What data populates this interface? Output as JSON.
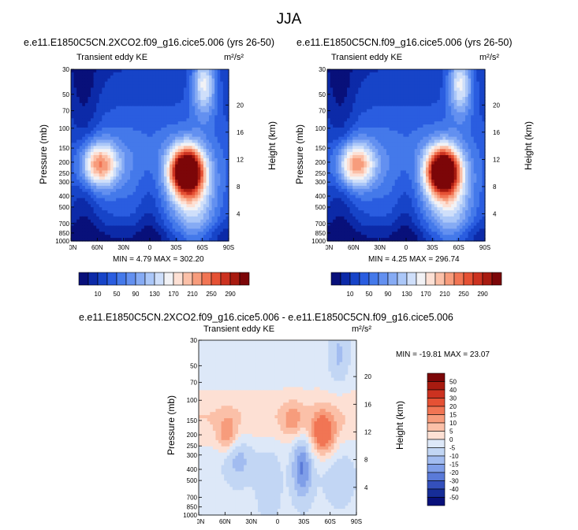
{
  "figure": {
    "title": "JJA"
  },
  "panels": [
    {
      "id": "p1",
      "title": "e.e11.E1850C5CN.2XCO2.f09_g16.cice5.006 (yrs 26-50)",
      "subtitle": "Transient eddy KE",
      "unit": "m²/s²",
      "minmax": "MIN =   4.79  MAX = 302.20"
    },
    {
      "id": "p2",
      "title": "e.e11.E1850C5CN.f09_g16.cice5.006 (yrs 26-50)",
      "subtitle": "Transient eddy KE",
      "unit": "m²/s²",
      "minmax": "MIN =   4.25  MAX = 296.74"
    },
    {
      "id": "p3",
      "title": "e.e11.E1850C5CN.2XCO2.f09_g16.cice5.006 - e.e11.E1850C5CN.f09_g16.cice5.006",
      "subtitle": "Transient eddy KE",
      "unit": "m²/s²",
      "minmax": "MIN = -19.81  MAX =  23.07"
    }
  ],
  "chart_data": [
    {
      "type": "heatmap",
      "title": "e.e11.E1850C5CN.2XCO2.f09_g16.cice5.006 (yrs 26-50)",
      "subtitle": "Transient eddy KE",
      "xlabel": "",
      "ylabel": "Pressure (mb)",
      "ylabel_right": "Height (km)",
      "x_ticks": [
        "90N",
        "60N",
        "30N",
        "0",
        "30S",
        "60S",
        "90S"
      ],
      "y_ticks": [
        30,
        50,
        70,
        100,
        150,
        200,
        250,
        300,
        400,
        500,
        700,
        850,
        1000
      ],
      "y_right_ticks": [
        4,
        8,
        12,
        16,
        20
      ],
      "y_scale": "log",
      "colorbar_levels": [
        10,
        50,
        90,
        130,
        170,
        210,
        250,
        290
      ],
      "features": [
        {
          "type": "max",
          "lat": 60,
          "p": 215,
          "value": 150
        },
        {
          "type": "max",
          "lat": -45,
          "p": 250,
          "value": 302.2
        },
        {
          "type": "max",
          "lat": -60,
          "p": 40,
          "value": 140
        }
      ],
      "min": 4.79,
      "max": 302.2
    },
    {
      "type": "heatmap",
      "title": "e.e11.E1850C5CN.f09_g16.cice5.006 (yrs 26-50)",
      "subtitle": "Transient eddy KE",
      "xlabel": "",
      "ylabel": "Pressure (mb)",
      "ylabel_right": "Height (km)",
      "x_ticks": [
        "90N",
        "60N",
        "30N",
        "0",
        "30S",
        "60S",
        "90S"
      ],
      "y_ticks": [
        30,
        50,
        70,
        100,
        150,
        200,
        250,
        300,
        400,
        500,
        700,
        850,
        1000
      ],
      "y_right_ticks": [
        4,
        8,
        12,
        16,
        20
      ],
      "y_scale": "log",
      "colorbar_levels": [
        10,
        50,
        90,
        130,
        170,
        210,
        250,
        290
      ],
      "features": [
        {
          "type": "max",
          "lat": 60,
          "p": 215,
          "value": 145
        },
        {
          "type": "max",
          "lat": -45,
          "p": 250,
          "value": 296.74
        },
        {
          "type": "max",
          "lat": -60,
          "p": 40,
          "value": 120
        }
      ],
      "min": 4.25,
      "max": 296.74
    },
    {
      "type": "heatmap",
      "title": "e.e11.E1850C5CN.2XCO2.f09_g16.cice5.006 - e.e11.E1850C5CN.f09_g16.cice5.006",
      "subtitle": "Transient eddy KE",
      "xlabel": "",
      "ylabel": "Pressure (mb)",
      "ylabel_right": "Height (km)",
      "x_ticks": [
        "90N",
        "60N",
        "30N",
        "0",
        "30S",
        "60S",
        "90S"
      ],
      "y_ticks": [
        30,
        50,
        70,
        100,
        150,
        200,
        250,
        300,
        400,
        500,
        700,
        850,
        1000
      ],
      "y_right_ticks": [
        4,
        8,
        12,
        16,
        20
      ],
      "y_scale": "log",
      "colorbar_levels": [
        50,
        40,
        30,
        20,
        15,
        10,
        5,
        0,
        -5,
        -10,
        -15,
        -20,
        -30,
        -40,
        -50
      ],
      "features": [
        {
          "type": "max",
          "lat": -52,
          "p": 200,
          "value": 23.07
        },
        {
          "type": "max",
          "lat": 58,
          "p": 200,
          "value": 15
        },
        {
          "type": "min",
          "lat": -30,
          "p": 400,
          "value": -19.81
        },
        {
          "type": "min",
          "lat": 45,
          "p": 320,
          "value": -10
        },
        {
          "type": "min",
          "lat": -70,
          "p": 40,
          "value": -8
        }
      ],
      "min": -19.81,
      "max": 23.07
    }
  ],
  "colors": {
    "kinetic": [
      "#08107a",
      "#0c2aa8",
      "#1744c8",
      "#2a5de0",
      "#4479ea",
      "#6390f0",
      "#86abf4",
      "#abc7f8",
      "#cfdffa",
      "#f2f2f5",
      "#fde0d4",
      "#fbc0a8",
      "#f79c7c",
      "#f17554",
      "#e55134",
      "#cc3220",
      "#a81b10",
      "#7c0608"
    ],
    "diff": [
      "#7c0608",
      "#a81b10",
      "#cc3220",
      "#e55134",
      "#f17554",
      "#f79c7c",
      "#fbc0a8",
      "#fde0d4",
      "#dde8f8",
      "#c2d6f4",
      "#a2bcf0",
      "#7f9ee8",
      "#5a7ad8",
      "#3450bc",
      "#162d98",
      "#08107a"
    ]
  }
}
